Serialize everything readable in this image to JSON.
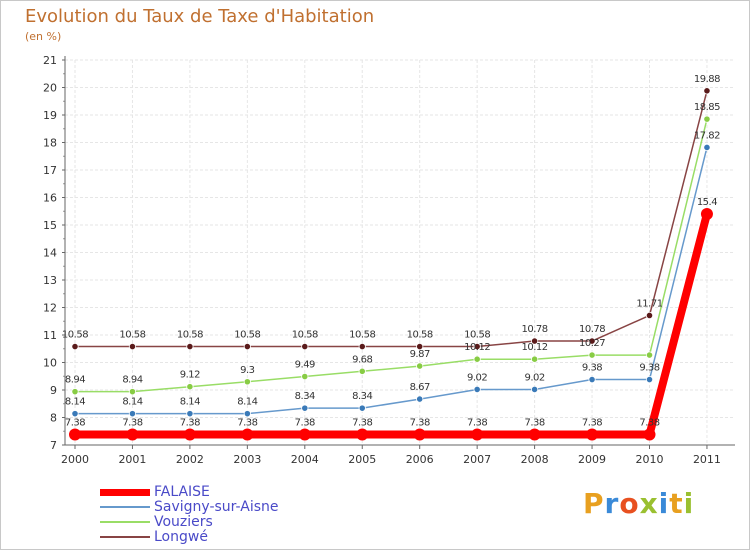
{
  "title": "Evolution du Taux de Taxe d'Habitation",
  "unit": "(en %)",
  "logo": {
    "text": "Proxiti",
    "colors": [
      "#e8a020",
      "#3a8ad8",
      "#e85020",
      "#9ac030",
      "#3a8ad8",
      "#e8a020",
      "#9ac030"
    ]
  },
  "legend": [
    {
      "label": "FALAISE",
      "color": "#ff0000"
    },
    {
      "label": "Savigny-sur-Aisne",
      "color": "#6699cc"
    },
    {
      "label": "Vouziers",
      "color": "#99dd66"
    },
    {
      "label": "Longwé",
      "color": "#884444"
    }
  ],
  "chart_data": {
    "type": "line",
    "title": "Evolution du Taux de Taxe d'Habitation",
    "ylabel": "(en %)",
    "x": [
      "2000",
      "2001",
      "2002",
      "2003",
      "2004",
      "2005",
      "2006",
      "2007",
      "2008",
      "2009",
      "2010",
      "2011"
    ],
    "ylim": [
      7,
      21
    ],
    "yticks": [
      "7",
      "8",
      "9",
      "10",
      "11",
      "12",
      "13",
      "14",
      "15",
      "16",
      "17",
      "18",
      "19",
      "20",
      "21"
    ],
    "grid": true,
    "series": [
      {
        "name": "Longwé",
        "color": "#884444",
        "marker": "#5a1a1a",
        "values": [
          10.58,
          10.58,
          10.58,
          10.58,
          10.58,
          10.58,
          10.58,
          10.58,
          10.78,
          10.78,
          11.71,
          19.88
        ],
        "labels": [
          "10.58",
          "10.58",
          "10.58",
          "10.58",
          "10.58",
          "10.58",
          "10.58",
          "10.58",
          "10.78",
          "10.78",
          "11.71",
          "19.88"
        ]
      },
      {
        "name": "Vouziers",
        "color": "#99dd66",
        "marker": "#88cc44",
        "values": [
          8.94,
          8.94,
          9.12,
          9.3,
          9.49,
          9.68,
          9.87,
          10.12,
          10.12,
          10.27,
          10.27,
          18.85
        ],
        "labels": [
          "8.94",
          "8.94",
          "9.12",
          "9.3",
          "9.49",
          "9.68",
          "9.87",
          "10.12",
          "10.12",
          "10.27",
          "",
          "18.85"
        ]
      },
      {
        "name": "Savigny-sur-Aisne",
        "color": "#6699cc",
        "marker": "#3a7ab8",
        "values": [
          8.14,
          8.14,
          8.14,
          8.14,
          8.34,
          8.34,
          8.67,
          9.02,
          9.02,
          9.38,
          9.38,
          17.82
        ],
        "labels": [
          "8.14",
          "8.14",
          "8.14",
          "8.14",
          "8.34",
          "8.34",
          "8.67",
          "9.02",
          "9.02",
          "9.38",
          "9.38",
          "17.82"
        ]
      },
      {
        "name": "FALAISE",
        "color": "#ff0000",
        "marker": "#ff0000",
        "values": [
          7.38,
          7.38,
          7.38,
          7.38,
          7.38,
          7.38,
          7.38,
          7.38,
          7.38,
          7.38,
          7.38,
          15.4
        ],
        "labels": [
          "7.38",
          "7.38",
          "7.38",
          "7.38",
          "7.38",
          "7.38",
          "7.38",
          "7.38",
          "7.38",
          "7.38",
          "7.38",
          "15.4"
        ]
      }
    ]
  }
}
